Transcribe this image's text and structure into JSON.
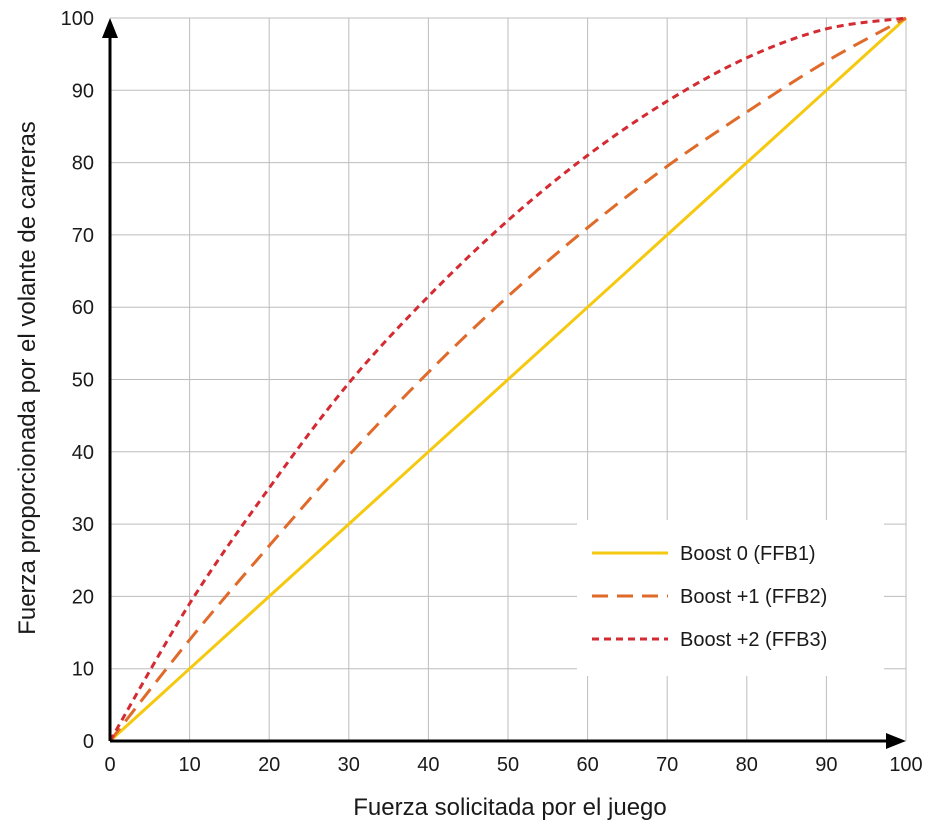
{
  "chart_data": {
    "type": "line",
    "title": "",
    "xlabel": "Fuerza solicitada por el juego",
    "ylabel": "Fuerza proporcionada por el volante de carreras",
    "xlim": [
      0,
      100
    ],
    "ylim": [
      0,
      100
    ],
    "xticks": [
      0,
      10,
      20,
      30,
      40,
      50,
      60,
      70,
      80,
      90,
      100
    ],
    "yticks": [
      0,
      10,
      20,
      30,
      40,
      50,
      60,
      70,
      80,
      90,
      100
    ],
    "grid": true,
    "legend_position": "bottom-right",
    "x": [
      0,
      10,
      20,
      30,
      40,
      50,
      60,
      70,
      80,
      90,
      100
    ],
    "series": [
      {
        "name": "Boost 0 (FFB1)",
        "style": "solid",
        "color": "#f5c90f",
        "values": [
          0,
          10,
          20,
          30,
          40,
          50,
          60,
          70,
          80,
          90,
          100
        ]
      },
      {
        "name": "Boost +1 (FFB2)",
        "style": "dashed",
        "color": "#e06a2a",
        "values": [
          0,
          14,
          27,
          39.5,
          51,
          61.5,
          71,
          79.5,
          87,
          94,
          100
        ]
      },
      {
        "name": "Boost +2 (FFB3)",
        "style": "dotted",
        "color": "#d42a32",
        "values": [
          0,
          19,
          35,
          49.5,
          61.5,
          72,
          81,
          88.5,
          94.5,
          98.5,
          100
        ]
      }
    ]
  }
}
